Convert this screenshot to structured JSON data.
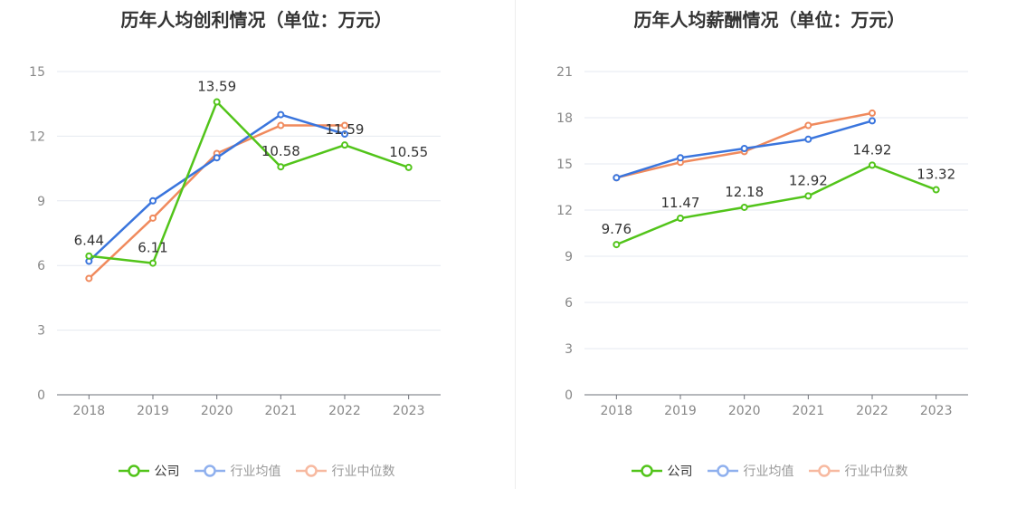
{
  "charts": [
    {
      "title": "历年人均创利情况（单位：万元）",
      "legend": [
        {
          "label": "公司",
          "color": "#52c41a"
        },
        {
          "label": "行业均值",
          "color": "#3a75dd"
        },
        {
          "label": "行业中位数",
          "color": "#f08a5d"
        }
      ]
    },
    {
      "title": "历年人均薪酬情况（单位：万元）",
      "legend": [
        {
          "label": "公司",
          "color": "#52c41a"
        },
        {
          "label": "行业均值",
          "color": "#3a75dd"
        },
        {
          "label": "行业中位数",
          "color": "#f08a5d"
        }
      ]
    }
  ],
  "chart_data": [
    {
      "type": "line",
      "title": "历年人均创利情况（单位：万元）",
      "categories": [
        "2018",
        "2019",
        "2020",
        "2021",
        "2022",
        "2023"
      ],
      "ylim": [
        0,
        15
      ],
      "yticks": [
        "0",
        "3",
        "6",
        "9",
        "12",
        "15"
      ],
      "grid": true,
      "legend_position": "bottom",
      "series": [
        {
          "name": "公司",
          "color": "#52c41a",
          "values": [
            6.44,
            6.11,
            13.59,
            10.58,
            11.59,
            10.55
          ],
          "labels": [
            "6.44",
            "6.11",
            "13.59",
            "10.58",
            "11.59",
            "10.55"
          ]
        },
        {
          "name": "行业均值",
          "color": "#3a75dd",
          "values": [
            6.2,
            9.0,
            11.0,
            13.0,
            12.1,
            null
          ],
          "labels": []
        },
        {
          "name": "行业中位数",
          "color": "#f08a5d",
          "values": [
            5.4,
            8.2,
            11.2,
            12.5,
            12.5,
            null
          ],
          "labels": []
        }
      ]
    },
    {
      "type": "line",
      "title": "历年人均薪酬情况（单位：万元）",
      "categories": [
        "2018",
        "2019",
        "2020",
        "2021",
        "2022",
        "2023"
      ],
      "ylim": [
        0,
        21
      ],
      "yticks": [
        "0",
        "3",
        "6",
        "9",
        "12",
        "15",
        "18",
        "21"
      ],
      "grid": true,
      "legend_position": "bottom",
      "series": [
        {
          "name": "公司",
          "color": "#52c41a",
          "values": [
            9.76,
            11.47,
            12.18,
            12.92,
            14.92,
            13.32
          ],
          "labels": [
            "9.76",
            "11.47",
            "12.18",
            "12.92",
            "14.92",
            "13.32"
          ]
        },
        {
          "name": "行业均值",
          "color": "#3a75dd",
          "values": [
            14.1,
            15.4,
            16.0,
            16.6,
            17.8,
            null
          ],
          "labels": []
        },
        {
          "name": "行业中位数",
          "color": "#f08a5d",
          "values": [
            14.1,
            15.1,
            15.8,
            17.5,
            18.3,
            null
          ],
          "labels": []
        }
      ]
    }
  ]
}
